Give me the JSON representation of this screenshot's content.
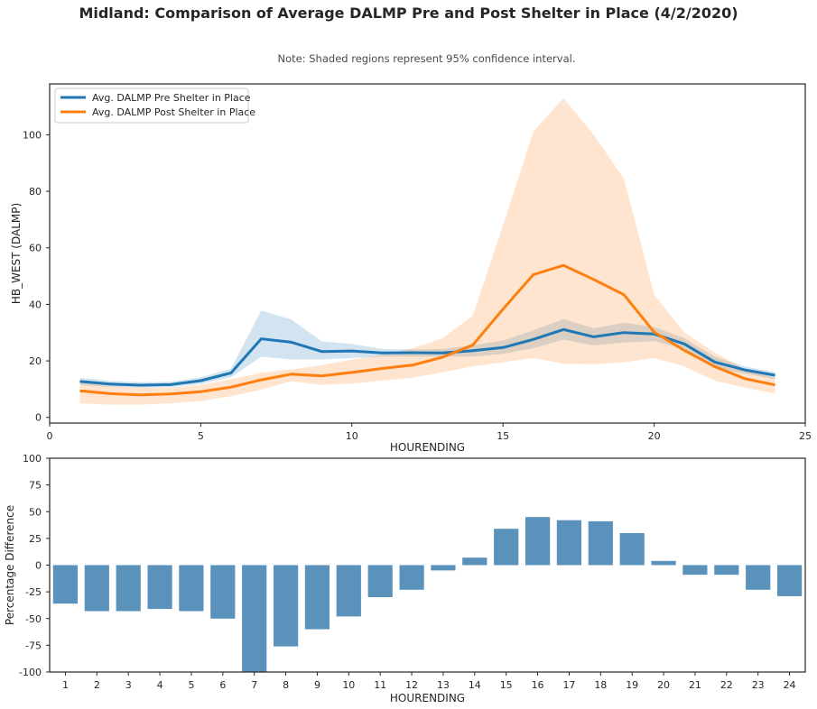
{
  "header": {
    "title": "Midland: Comparison of Average DALMP Pre and Post Shelter in Place (4/2/2020)",
    "note": "Note: Shaded regions represent 95% confidence interval."
  },
  "chart_data": [
    {
      "type": "line",
      "xlabel": "HOURENDING",
      "ylabel": "HB_WEST (DALMP)",
      "xlim": [
        0,
        25
      ],
      "ylim": [
        -2,
        118
      ],
      "xticks": [
        0,
        5,
        10,
        15,
        20,
        25
      ],
      "yticks": [
        0,
        20,
        40,
        60,
        80,
        100
      ],
      "grid": false,
      "legend_position": "top-left",
      "x": [
        1,
        2,
        3,
        4,
        5,
        6,
        7,
        8,
        9,
        10,
        11,
        12,
        13,
        14,
        15,
        16,
        17,
        18,
        19,
        20,
        21,
        22,
        23,
        24
      ],
      "series": [
        {
          "name": "Avg. DALMP Pre Shelter in Place",
          "color": "#1f77b4",
          "values": [
            12.7,
            11.8,
            11.4,
            11.6,
            13.0,
            15.7,
            27.8,
            26.6,
            23.3,
            23.5,
            22.8,
            22.9,
            22.8,
            23.6,
            24.7,
            27.6,
            31.1,
            28.5,
            30.0,
            29.5,
            26.0,
            19.6,
            16.8,
            14.9
          ],
          "ci_lower": [
            11.5,
            10.8,
            10.5,
            10.7,
            11.8,
            14.2,
            21.5,
            20.5,
            20.5,
            21.0,
            21.5,
            21.5,
            21.5,
            21.5,
            22.5,
            24.5,
            27.5,
            25.5,
            26.5,
            27.0,
            24.0,
            17.5,
            15.5,
            13.5
          ],
          "ci_upper": [
            14.0,
            12.9,
            12.5,
            12.6,
            14.2,
            17.2,
            37.8,
            34.6,
            26.9,
            26.0,
            24.2,
            24.0,
            24.2,
            25.5,
            27.2,
            30.8,
            34.8,
            31.5,
            33.5,
            32.0,
            28.0,
            21.5,
            18.0,
            16.0
          ]
        },
        {
          "name": "Avg. DALMP Post Shelter in Place",
          "color": "#ff7f0e",
          "values": [
            9.4,
            8.4,
            8.0,
            8.3,
            9.1,
            10.7,
            13.3,
            15.3,
            14.7,
            15.9,
            17.3,
            18.5,
            21.3,
            25.6,
            38.3,
            50.5,
            53.8,
            48.8,
            43.4,
            30.2,
            23.7,
            18.0,
            13.7,
            11.5
          ],
          "ci_lower": [
            5.0,
            4.5,
            4.5,
            5.0,
            5.8,
            7.5,
            9.8,
            12.8,
            11.5,
            12.0,
            13.0,
            14.0,
            16.0,
            18.0,
            19.5,
            21.0,
            19.0,
            18.8,
            19.5,
            21.0,
            18.0,
            13.0,
            10.5,
            8.5
          ],
          "ci_upper": [
            12.5,
            11.0,
            10.5,
            10.5,
            11.5,
            13.5,
            15.8,
            17.0,
            18.5,
            20.5,
            22.0,
            24.5,
            28.0,
            36.0,
            68.0,
            101.0,
            113.0,
            100.0,
            84.5,
            43.5,
            30.0,
            23.0,
            17.0,
            14.0
          ]
        }
      ]
    },
    {
      "type": "bar",
      "xlabel": "HOURENDING",
      "ylabel": "Percentage Difference",
      "ylim": [
        -100,
        100
      ],
      "yticks": [
        -100,
        -75,
        -50,
        -25,
        0,
        25,
        50,
        75,
        100
      ],
      "grid": false,
      "color": "#5a92bc",
      "categories": [
        "1",
        "2",
        "3",
        "4",
        "5",
        "6",
        "7",
        "8",
        "9",
        "10",
        "11",
        "12",
        "13",
        "14",
        "15",
        "16",
        "17",
        "18",
        "19",
        "20",
        "21",
        "22",
        "23",
        "24"
      ],
      "values": [
        -36,
        -43,
        -43,
        -41,
        -43,
        -50,
        -102,
        -76,
        -60,
        -48,
        -30,
        -23,
        -5,
        7,
        34,
        45,
        42,
        41,
        30,
        4,
        -9,
        -9,
        -23,
        -29
      ]
    }
  ]
}
